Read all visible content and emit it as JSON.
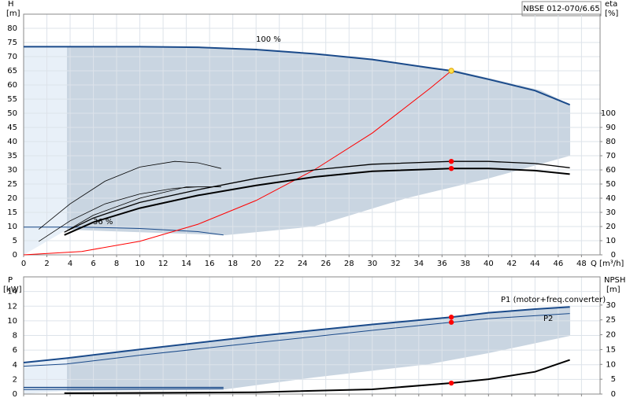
{
  "chart_data": [
    {
      "type": "line",
      "title": "NBSE 012-070/6.65",
      "y_label": "H",
      "y_unit": "[m]",
      "y2_label": "eta",
      "y2_unit": "[%]",
      "x_label": "Q [m³/h]",
      "xlim": [
        0,
        49.6
      ],
      "xticks": [
        0,
        2,
        4,
        6,
        8,
        10,
        12,
        14,
        16,
        18,
        20,
        22,
        24,
        26,
        28,
        30,
        32,
        34,
        36,
        38,
        40,
        42,
        44,
        46,
        48
      ],
      "ylim": [
        0,
        85
      ],
      "yticks": [
        0,
        5,
        10,
        15,
        20,
        25,
        30,
        35,
        40,
        45,
        50,
        55,
        60,
        65,
        70,
        75,
        80
      ],
      "y2lim": [
        0,
        170
      ],
      "y2ticks": [
        0,
        10,
        20,
        30,
        40,
        50,
        60,
        70,
        80,
        90,
        100
      ],
      "grid": true,
      "series": [
        {
          "name": "100 %",
          "color": "#1a4a8a",
          "line_width": 2,
          "x": [
            0,
            3.7,
            10,
            15,
            20,
            25,
            30,
            35,
            36.8,
            40,
            44,
            47
          ],
          "values": [
            73.5,
            73.5,
            73.5,
            73.3,
            72.5,
            71,
            69,
            66,
            65,
            62,
            58,
            53
          ]
        },
        {
          "name": "36 %",
          "color": "#1a4a8a",
          "line_width": 1,
          "x": [
            0,
            5,
            10,
            15,
            17.2
          ],
          "values": [
            9.8,
            9.8,
            9.3,
            8.2,
            7
          ]
        },
        {
          "color": "#ff0000",
          "line_width": 1,
          "x": [
            0,
            5,
            10,
            15,
            20,
            25,
            30,
            35,
            36.8
          ],
          "values": [
            0,
            1.2,
            4.8,
            10.8,
            19.2,
            30,
            43,
            58.9,
            65
          ]
        },
        {
          "color": "#000000",
          "line_width": 2,
          "axis": "y2",
          "x": [
            3.5,
            6,
            10,
            15,
            20,
            25,
            30,
            36.8,
            40,
            44,
            47
          ],
          "values": [
            14,
            23,
            33,
            42,
            49,
            55,
            59,
            61,
            61,
            59.5,
            57
          ]
        },
        {
          "color": "#000000",
          "line_width": 1.3,
          "axis": "y2",
          "x": [
            3.5,
            6,
            10,
            15,
            20,
            25,
            30,
            36.8,
            40,
            44,
            47
          ],
          "values": [
            16,
            26,
            37,
            46,
            54,
            60,
            64,
            66,
            66,
            64.5,
            61.5
          ]
        },
        {
          "color": "#000000",
          "line_width": 0.8,
          "axis": "y2",
          "x": [
            1.3,
            4,
            7,
            10,
            13,
            15,
            17
          ],
          "values": [
            18,
            36,
            52,
            62,
            66,
            65,
            61
          ]
        },
        {
          "color": "#000000",
          "line_width": 0.8,
          "axis": "y2",
          "x": [
            1.3,
            4,
            7,
            10,
            13,
            15,
            17
          ],
          "values": [
            9.5,
            24,
            36,
            43,
            47,
            48,
            48
          ]
        },
        {
          "color": "#000000",
          "line_width": 0.8,
          "axis": "y2",
          "x": [
            3.5,
            6,
            10,
            14,
            17
          ],
          "values": [
            16,
            28,
            40,
            48,
            48
          ]
        }
      ],
      "points": [
        {
          "x": 36.8,
          "value": 65,
          "color": "#ffe24a"
        },
        {
          "x": 36.8,
          "value": 66,
          "axis": "y2",
          "color": "#ff0000"
        },
        {
          "x": 36.8,
          "value": 61,
          "axis": "y2",
          "color": "#ff0000"
        }
      ]
    },
    {
      "type": "line",
      "y_label": "P",
      "y_unit": "[kW]",
      "y2_label": "NPSH",
      "y2_unit": "[m]",
      "xlim": [
        0,
        49.6
      ],
      "xticks": [
        0,
        2,
        4,
        6,
        8,
        10,
        12,
        14,
        16,
        18,
        20,
        22,
        24,
        26,
        28,
        30,
        32,
        34,
        36,
        38,
        40,
        42,
        44,
        46,
        48
      ],
      "xtick_labels": false,
      "ylim": [
        0,
        16
      ],
      "yticks": [
        0,
        2,
        4,
        6,
        8,
        10,
        12,
        14
      ],
      "y2lim": [
        0,
        39.5
      ],
      "y2ticks": [
        0,
        5,
        10,
        15,
        20,
        25,
        30
      ],
      "grid": true,
      "series": [
        {
          "name": "P1 (motor+freq.converter)",
          "color": "#1a4a8a",
          "line_width": 2,
          "x": [
            0,
            3.7,
            10,
            20,
            30,
            36.8,
            40,
            44,
            47
          ],
          "values": [
            4.3,
            4.9,
            6.1,
            7.9,
            9.5,
            10.5,
            11.1,
            11.6,
            11.9
          ]
        },
        {
          "name": "P2",
          "color": "#1a4a8a",
          "line_width": 1,
          "x": [
            0,
            3.7,
            10,
            20,
            30,
            36.8,
            40,
            44,
            47
          ],
          "values": [
            3.8,
            4.1,
            5.3,
            7.0,
            8.7,
            9.8,
            10.3,
            10.7,
            11.0
          ]
        },
        {
          "color": "#1a4a8a",
          "line_width": 1.5,
          "x": [
            0,
            17.2
          ],
          "values": [
            0.9,
            0.9
          ]
        },
        {
          "color": "#1a4a8a",
          "line_width": 1,
          "x": [
            0,
            17.2
          ],
          "values": [
            0.6,
            0.7
          ]
        },
        {
          "color": "#000000",
          "line_width": 2,
          "axis": "y2",
          "x": [
            3.5,
            10,
            20,
            30,
            36.8,
            40,
            44,
            47
          ],
          "values": [
            0.3,
            0.4,
            0.6,
            1.6,
            3.7,
            5,
            7.5,
            11.5
          ]
        }
      ],
      "points": [
        {
          "x": 36.8,
          "value": 10.5,
          "color": "#ff0000"
        },
        {
          "x": 36.8,
          "value": 9.8,
          "color": "#ff0000"
        },
        {
          "x": 36.8,
          "value": 3.7,
          "axis": "y2",
          "color": "#ff0000"
        }
      ]
    }
  ]
}
